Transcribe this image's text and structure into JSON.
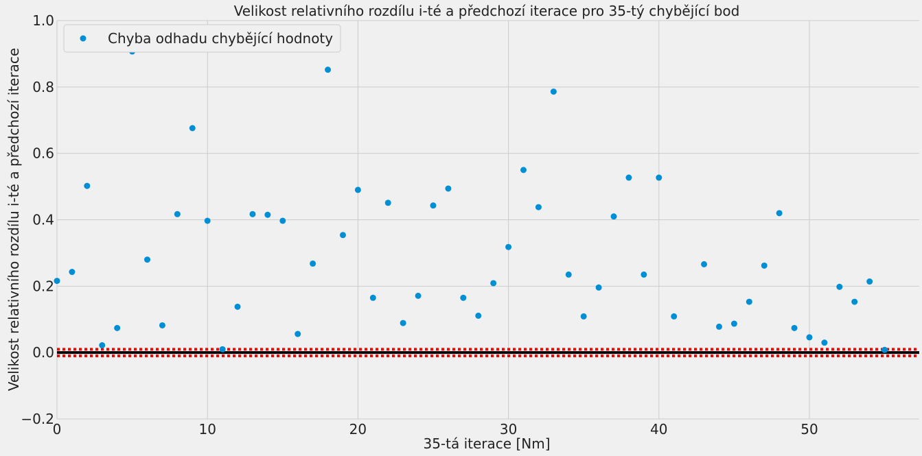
{
  "chart_data": {
    "type": "scatter",
    "title": "Velikost relativního rozdílu i-té a předchozí iterace pro 35-tý chybějící bod",
    "xlabel": "35-tá iterace [Nm]",
    "ylabel": "Velikost relativního rozdílu i-té a předchozí iterace",
    "xlim": [
      0,
      57.3
    ],
    "ylim": [
      -0.2,
      1.0
    ],
    "xticks": [
      0,
      10,
      20,
      30,
      40,
      50
    ],
    "yticks": [
      -0.2,
      0.0,
      0.2,
      0.4,
      0.6,
      0.8,
      1.0
    ],
    "ytick_labels": [
      "−0.2",
      "0.0",
      "0.2",
      "0.4",
      "0.6",
      "0.8",
      "1.0"
    ],
    "grid": true,
    "legend_position": "top-left",
    "series": [
      {
        "name": "Chyba odhadu chybějící hodnoty",
        "color": "#008fd5",
        "x": [
          0,
          1,
          2,
          3,
          4,
          5,
          6,
          7,
          8,
          9,
          10,
          11,
          12,
          13,
          14,
          15,
          16,
          17,
          18,
          19,
          20,
          21,
          22,
          23,
          24,
          25,
          26,
          27,
          28,
          29,
          30,
          31,
          32,
          33,
          34,
          35,
          36,
          37,
          38,
          39,
          40,
          41,
          43,
          44,
          45,
          46,
          47,
          48,
          49,
          50,
          51,
          52,
          53,
          54,
          55
        ],
        "y": [
          0.216,
          0.243,
          0.502,
          0.022,
          0.074,
          0.907,
          0.28,
          0.082,
          0.417,
          0.676,
          0.397,
          0.01,
          0.138,
          0.417,
          0.415,
          0.397,
          0.056,
          0.268,
          0.852,
          0.354,
          0.49,
          0.165,
          0.451,
          0.089,
          0.171,
          0.443,
          0.494,
          0.165,
          0.111,
          0.209,
          0.318,
          0.55,
          0.438,
          0.786,
          0.235,
          0.109,
          0.196,
          0.41,
          0.527,
          0.235,
          0.527,
          0.109,
          0.266,
          0.078,
          0.087,
          0.153,
          0.262,
          0.42,
          0.074,
          0.046,
          0.03,
          0.198,
          0.153,
          0.214,
          0.008
        ]
      }
    ],
    "reference_lines": [
      {
        "y": 0.0,
        "color": "#000000",
        "style": "solid"
      },
      {
        "y": 0.01,
        "color": "#ff0000",
        "style": "dotted"
      },
      {
        "y": -0.01,
        "color": "#ff0000",
        "style": "dotted"
      }
    ]
  }
}
